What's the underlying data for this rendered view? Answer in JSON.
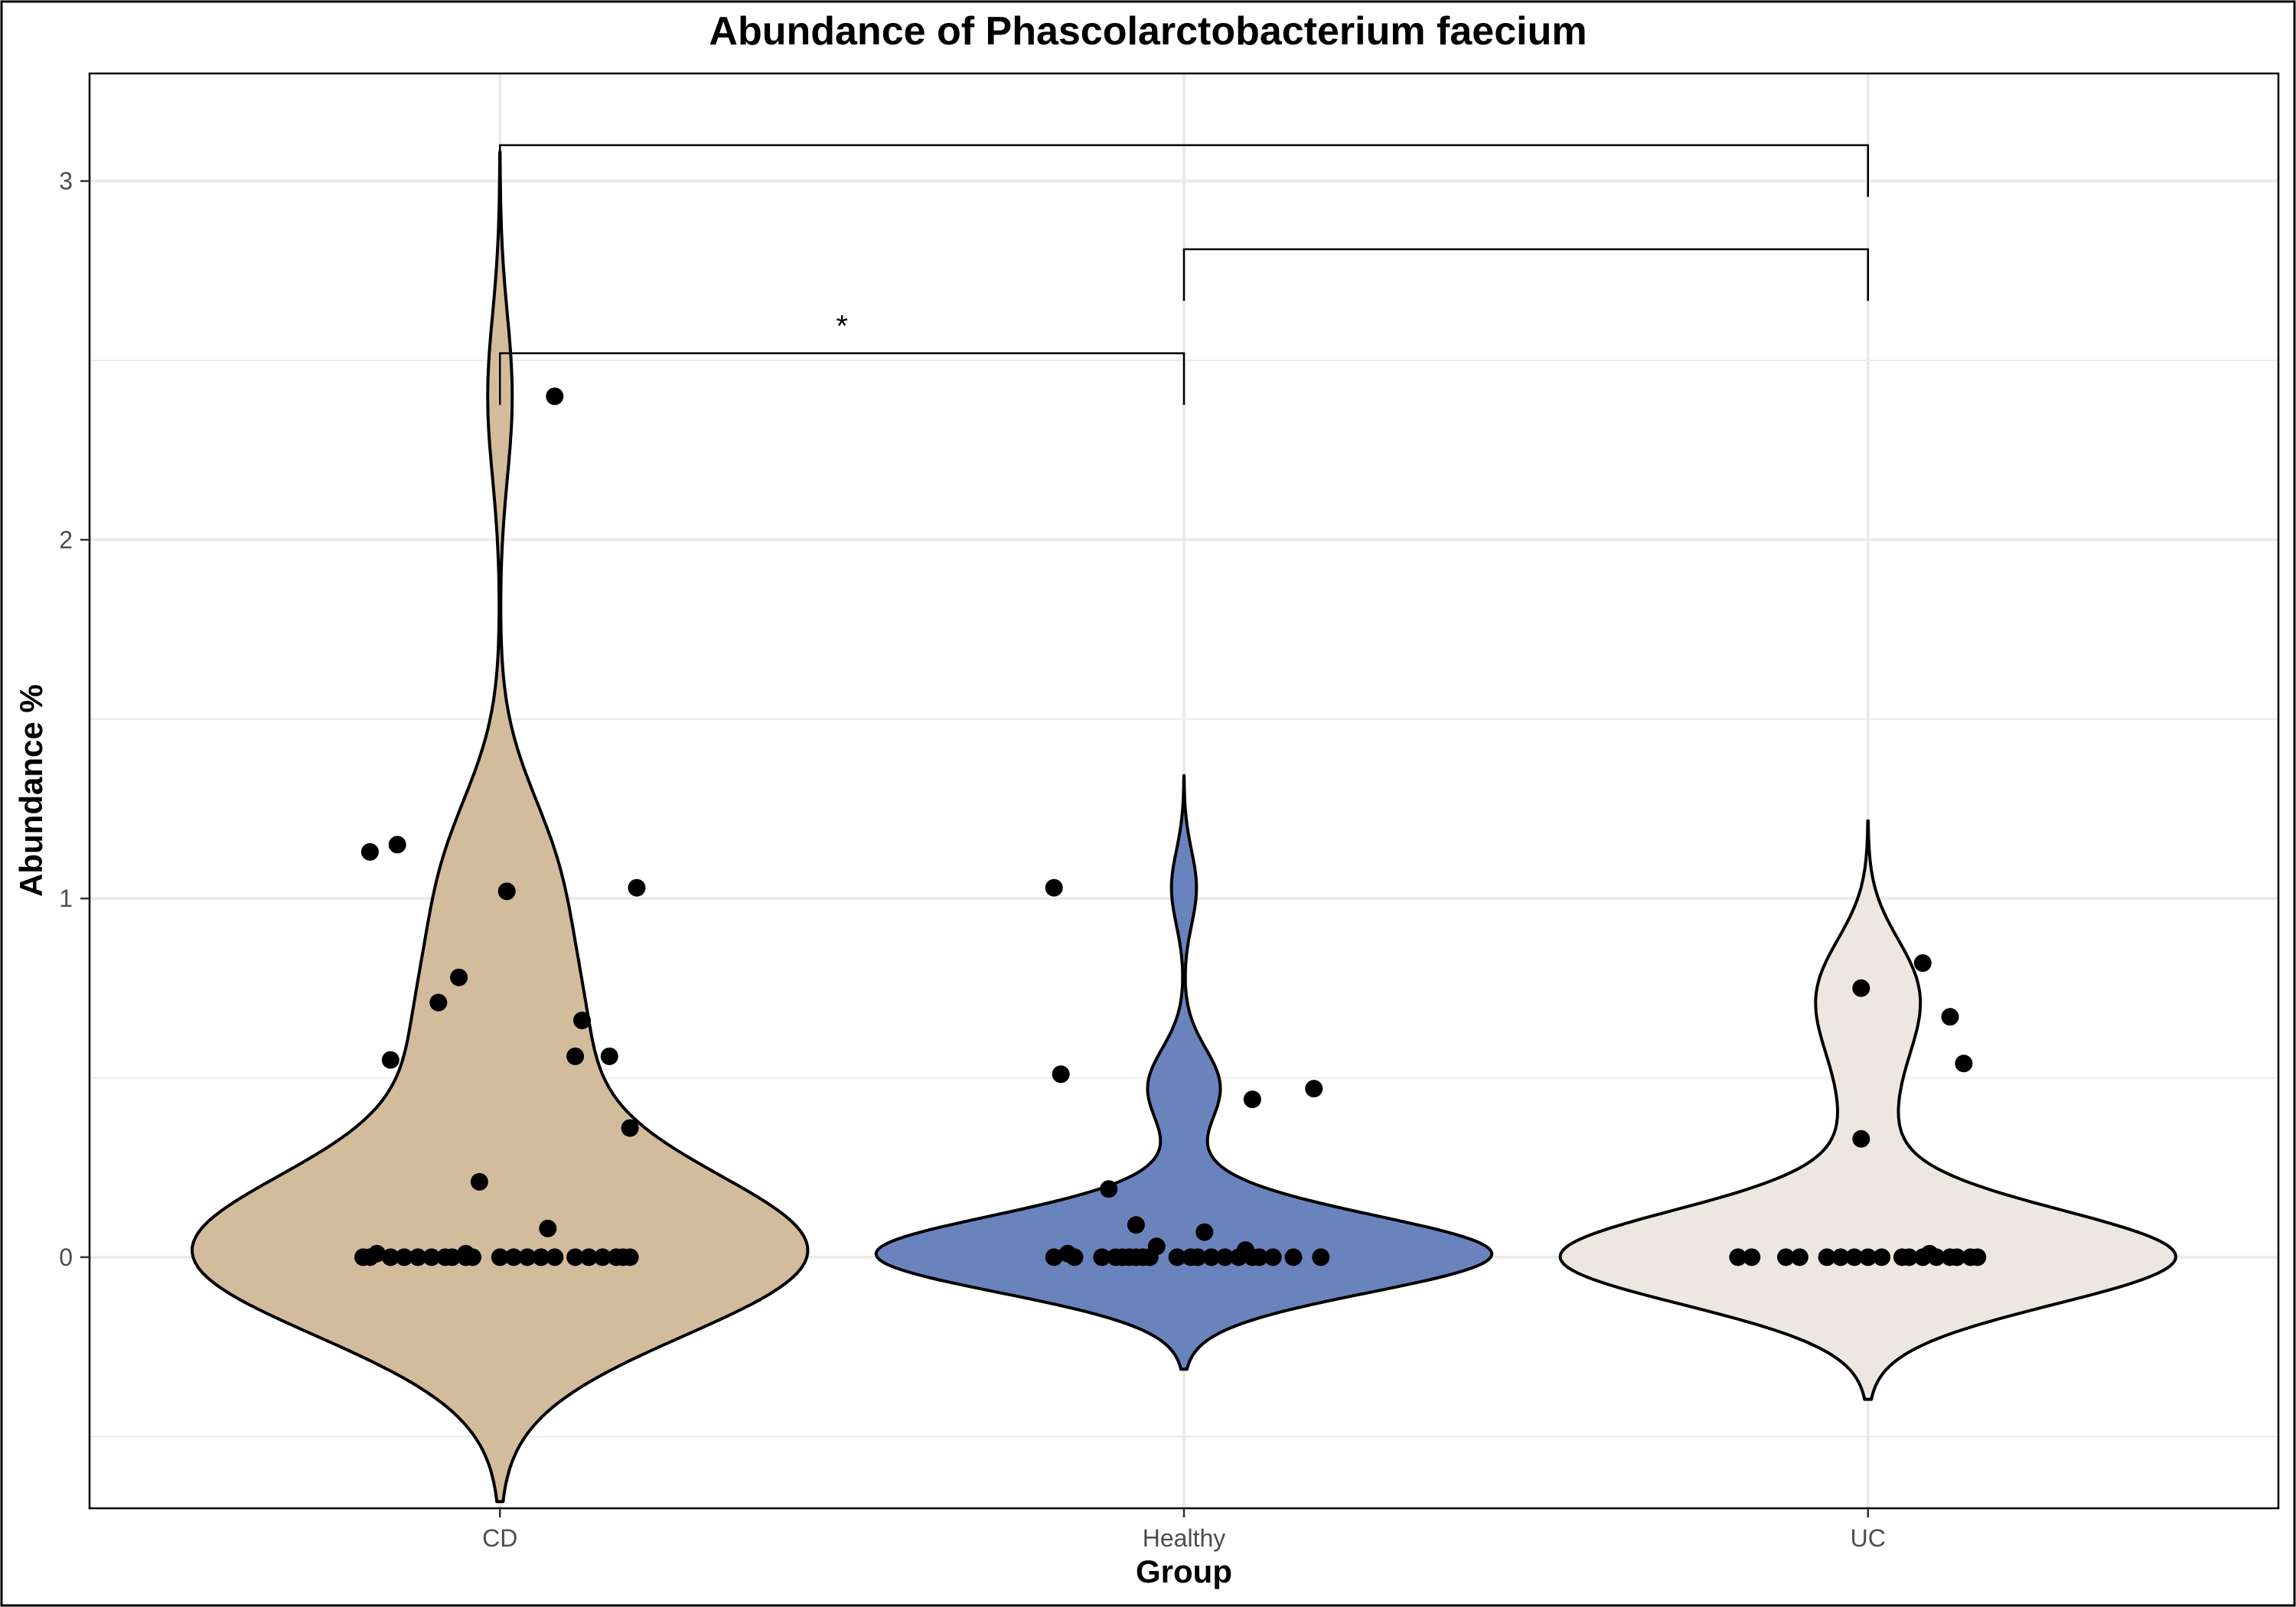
{
  "chart_data": {
    "type": "violin",
    "title": "Abundance of Phascolarctobacterium faecium",
    "xlabel": "Group",
    "ylabel": "Abundance %",
    "categories": [
      "CD",
      "Healthy",
      "UC"
    ],
    "ylim": [
      -0.7,
      3.3
    ],
    "y_ticks": [
      0,
      1,
      2,
      3
    ],
    "grid": true,
    "colors": {
      "CD": "#d2bc9c",
      "Healthy": "#6b83bd",
      "UC": "#ece8e1",
      "points": "#000000",
      "grid": "#ebebeb"
    },
    "series": [
      {
        "name": "CD",
        "points": [
          [
            -0.05,
            0.0
          ],
          [
            -0.19,
            0.0
          ],
          [
            -0.2,
            0.0
          ],
          [
            -0.16,
            0.0
          ],
          [
            -0.14,
            0.0
          ],
          [
            -0.12,
            0.0
          ],
          [
            -0.1,
            0.0
          ],
          [
            -0.08,
            0.0
          ],
          [
            -0.07,
            0.0
          ],
          [
            -0.04,
            0.0
          ],
          [
            0.0,
            0.0
          ],
          [
            0.02,
            0.0
          ],
          [
            0.04,
            0.0
          ],
          [
            0.06,
            0.0
          ],
          [
            0.08,
            0.0
          ],
          [
            0.11,
            0.0
          ],
          [
            0.13,
            0.0
          ],
          [
            0.15,
            0.0
          ],
          [
            0.17,
            0.0
          ],
          [
            0.18,
            0.0
          ],
          [
            0.19,
            0.0
          ],
          [
            -0.18,
            0.01
          ],
          [
            -0.05,
            0.01
          ],
          [
            0.07,
            0.08
          ],
          [
            -0.03,
            0.21
          ],
          [
            0.19,
            0.36
          ],
          [
            -0.16,
            0.55
          ],
          [
            0.11,
            0.56
          ],
          [
            0.16,
            0.56
          ],
          [
            0.12,
            0.66
          ],
          [
            -0.09,
            0.71
          ],
          [
            -0.06,
            0.78
          ],
          [
            0.01,
            1.02
          ],
          [
            0.2,
            1.03
          ],
          [
            -0.19,
            1.13
          ],
          [
            -0.15,
            1.15
          ],
          [
            0.08,
            2.4
          ]
        ]
      },
      {
        "name": "Healthy",
        "points": [
          [
            -0.19,
            1.03
          ],
          [
            -0.18,
            0.51
          ],
          [
            0.1,
            0.44
          ],
          [
            0.19,
            0.47
          ],
          [
            -0.11,
            0.19
          ],
          [
            -0.07,
            0.09
          ],
          [
            0.03,
            0.07
          ],
          [
            -0.04,
            0.03
          ],
          [
            0.09,
            0.02
          ],
          [
            -0.17,
            0.01
          ],
          [
            -0.19,
            0.0
          ],
          [
            -0.16,
            0.0
          ],
          [
            -0.12,
            0.0
          ],
          [
            -0.1,
            0.0
          ],
          [
            -0.09,
            0.0
          ],
          [
            -0.08,
            0.0
          ],
          [
            -0.07,
            0.0
          ],
          [
            -0.06,
            0.0
          ],
          [
            -0.05,
            0.0
          ],
          [
            -0.01,
            0.0
          ],
          [
            0.01,
            0.0
          ],
          [
            0.02,
            0.0
          ],
          [
            0.04,
            0.0
          ],
          [
            0.06,
            0.0
          ],
          [
            0.08,
            0.0
          ],
          [
            0.1,
            0.0
          ],
          [
            0.11,
            0.0
          ],
          [
            0.13,
            0.0
          ],
          [
            0.16,
            0.0
          ],
          [
            0.2,
            0.0
          ]
        ]
      },
      {
        "name": "UC",
        "points": [
          [
            -0.19,
            0.0
          ],
          [
            -0.17,
            0.0
          ],
          [
            -0.12,
            0.0
          ],
          [
            -0.1,
            0.0
          ],
          [
            -0.06,
            0.0
          ],
          [
            -0.04,
            0.0
          ],
          [
            -0.02,
            0.0
          ],
          [
            0.0,
            0.0
          ],
          [
            0.02,
            0.0
          ],
          [
            0.05,
            0.0
          ],
          [
            0.06,
            0.0
          ],
          [
            0.08,
            0.0
          ],
          [
            0.1,
            0.0
          ],
          [
            0.12,
            0.0
          ],
          [
            0.13,
            0.0
          ],
          [
            0.15,
            0.0
          ],
          [
            0.16,
            0.0
          ],
          [
            0.09,
            0.01
          ],
          [
            -0.01,
            0.33
          ],
          [
            0.14,
            0.54
          ],
          [
            0.12,
            0.67
          ],
          [
            -0.01,
            0.75
          ],
          [
            0.08,
            0.82
          ]
        ]
      }
    ],
    "comparisons": [
      {
        "from": "CD",
        "to": "UC",
        "y": 3.1,
        "label": ""
      },
      {
        "from": "Healthy",
        "to": "UC",
        "y": 2.81,
        "label": ""
      },
      {
        "from": "CD",
        "to": "Healthy",
        "y": 2.52,
        "label": "*"
      }
    ]
  }
}
